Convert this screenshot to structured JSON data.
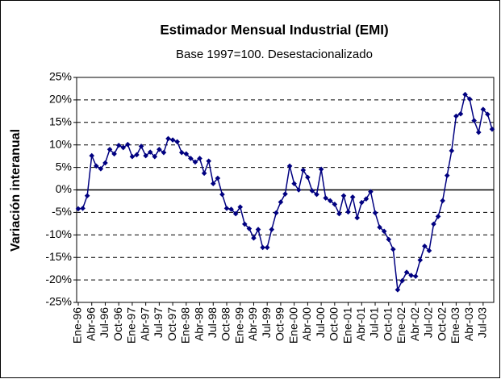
{
  "chart_data": {
    "type": "line",
    "title": "Estimador Mensual Industrial (EMI)",
    "subtitle": "Base 1997=100. Desestacionalizado",
    "y_label": "Variación interanual",
    "categories": [
      "Ene-96",
      null,
      null,
      "Abr-96",
      null,
      null,
      "Jul-96",
      null,
      null,
      "Oct-96",
      null,
      null,
      "Ene-97",
      null,
      null,
      "Abr-97",
      null,
      null,
      "Jul-97",
      null,
      null,
      "Oct-97",
      null,
      null,
      "Ene-98",
      null,
      null,
      "Abr-98",
      null,
      null,
      "Jul-98",
      null,
      null,
      "Oct-98",
      null,
      null,
      "Ene-99",
      null,
      null,
      "Abr-99",
      null,
      null,
      "Jul-99",
      null,
      null,
      "Oct-99",
      null,
      null,
      "Ene-00",
      null,
      null,
      "Abr-00",
      null,
      null,
      "Jul-00",
      null,
      null,
      "Oct-00",
      null,
      null,
      "Ene-01",
      null,
      null,
      "Abr-01",
      null,
      null,
      "Jul-01",
      null,
      null,
      "Oct-01",
      null,
      null,
      "Ene-02",
      null,
      null,
      "Abr-02",
      null,
      null,
      "Jul-02",
      null,
      null,
      "Oct-02",
      null,
      null,
      "Ene-03",
      null,
      null,
      "Abr-03",
      null,
      null,
      "Jul-03",
      null,
      null
    ],
    "series": [
      {
        "name": "EMI",
        "color": "#000080",
        "values": [
          -4.2,
          -4.1,
          -1.3,
          7.6,
          5.3,
          4.7,
          6.0,
          9.0,
          8.0,
          9.9,
          9.4,
          10.1,
          7.4,
          7.8,
          9.7,
          7.6,
          8.4,
          7.4,
          9.0,
          8.3,
          11.4,
          11.1,
          10.7,
          8.3,
          8.0,
          7.0,
          6.2,
          7.0,
          3.7,
          6.4,
          1.4,
          2.6,
          -1.0,
          -4.1,
          -4.3,
          -5.3,
          -3.8,
          -7.6,
          -8.6,
          -10.7,
          -8.8,
          -12.8,
          -12.8,
          -8.8,
          -5.1,
          -2.7,
          -0.9,
          5.3,
          1.4,
          0,
          4.4,
          2.8,
          -0.2,
          -1.0,
          4.6,
          -1.8,
          -2.4,
          -3.2,
          -5.3,
          -1.3,
          -4.9,
          -1.6,
          -6.2,
          -2.8,
          -2.0,
          -0.4,
          -5.1,
          -8.3,
          -9.2,
          -11.0,
          -13.2,
          -22.2,
          -20.2,
          -18.3,
          -19.0,
          -19.2,
          -15.6,
          -12.5,
          -13.5,
          -7.6,
          -5.9,
          -2.4,
          3.2,
          8.7,
          16.4,
          16.9,
          21.2,
          20.2,
          15.4,
          12.8,
          17.9,
          16.8,
          13.5
        ]
      }
    ],
    "ylim": [
      -25,
      25
    ],
    "yticks": [
      {
        "value": 25,
        "label": "25%"
      },
      {
        "value": 20,
        "label": "20%"
      },
      {
        "value": 15,
        "label": "15%"
      },
      {
        "value": 10,
        "label": "10%"
      },
      {
        "value": 5,
        "label": "5%"
      },
      {
        "value": 0,
        "label": "0%"
      },
      {
        "value": -5,
        "label": "-5%"
      },
      {
        "value": -10,
        "label": "-10%"
      },
      {
        "value": -15,
        "label": "-15%"
      },
      {
        "value": -20,
        "label": "-20%"
      },
      {
        "value": -25,
        "label": "-25%"
      }
    ],
    "grid": true
  }
}
